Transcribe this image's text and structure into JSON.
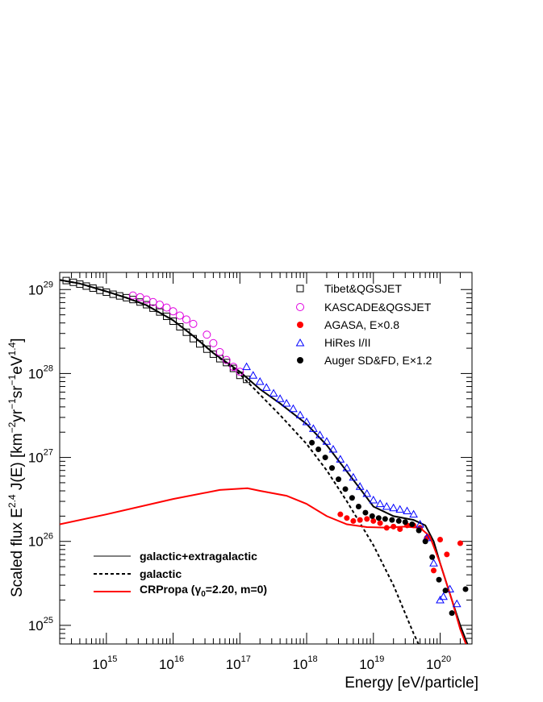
{
  "chart_data": {
    "type": "scatter",
    "xlabel": "Energy [eV/particle]",
    "ylabel": {
      "prefix": "Scaled flux   E",
      "exp1": "2.4",
      "mid": " J(E) [km",
      "exp2": "−2",
      "mid2": "yr",
      "exp3": "−1",
      "mid3": "sr",
      "exp4": "−1",
      "mid4": "eV",
      "exp5": "1.4",
      "suffix": "]"
    },
    "x_scale": "log",
    "y_scale": "log",
    "xlim": [
      200000000000000.0,
      3e+20
    ],
    "ylim": [
      6e+24,
      1.6e+29
    ],
    "x_ticks": [
      {
        "base": "10",
        "exp": "15"
      },
      {
        "base": "10",
        "exp": "16"
      },
      {
        "base": "10",
        "exp": "17"
      },
      {
        "base": "10",
        "exp": "18"
      },
      {
        "base": "10",
        "exp": "19"
      },
      {
        "base": "10",
        "exp": "20"
      }
    ],
    "y_ticks": [
      {
        "base": "10",
        "exp": "25"
      },
      {
        "base": "10",
        "exp": "26"
      },
      {
        "base": "10",
        "exp": "27"
      },
      {
        "base": "10",
        "exp": "28"
      },
      {
        "base": "10",
        "exp": "29"
      }
    ],
    "legend_top": {
      "placement": "top-right",
      "entries": [
        {
          "label": "Tibet&QGSJET",
          "marker": "open-square",
          "color": "#000000"
        },
        {
          "label": "KASCADE&QGSJET",
          "marker": "open-circle",
          "color": "#e000e0"
        },
        {
          "label": "AGASA, E×0.8",
          "marker": "filled-circle",
          "color": "#ff0000"
        },
        {
          "label": "HiRes I/II",
          "marker": "open-triangle",
          "color": "#0000ff"
        },
        {
          "label": "Auger SD&FD, E×1.2",
          "marker": "filled-circle",
          "color": "#000000"
        }
      ]
    },
    "legend_bottom": {
      "placement": "bottom-left",
      "entries": [
        {
          "label": "galactic+extragalactic",
          "style": "solid",
          "color": "#000000"
        },
        {
          "label": "galactic",
          "style": "dashed",
          "color": "#000000"
        },
        {
          "label_prefix": "CRPropa (γ",
          "label_sub": "0",
          "label_suffix": "=2.20, m=0)",
          "style": "solid",
          "color": "#ff0000"
        }
      ]
    },
    "series": [
      {
        "name": "Tibet&QGSJET",
        "marker": "open-square",
        "color": "#000000",
        "points": [
          [
            250000000000000.0,
            1.28e+29
          ],
          [
            320000000000000.0,
            1.22e+29
          ],
          [
            400000000000000.0,
            1.16e+29
          ],
          [
            500000000000000.0,
            1.1e+29
          ],
          [
            630000000000000.0,
            1.04e+29
          ],
          [
            800000000000000.0,
            9.8e+28
          ],
          [
            1000000000000000.0,
            9.3e+28
          ],
          [
            1260000000000000.0,
            8.8e+28
          ],
          [
            1580000000000000.0,
            8.4e+28
          ],
          [
            2000000000000000.0,
            8e+28
          ],
          [
            2500000000000000.0,
            7.6e+28
          ],
          [
            3200000000000000.0,
            7.1e+28
          ],
          [
            4000000000000000.0,
            6.6e+28
          ],
          [
            5000000000000000.0,
            6e+28
          ],
          [
            6300000000000000.0,
            5.4e+28
          ],
          [
            8000000000000000.0,
            4.8e+28
          ],
          [
            1e+16,
            4.2e+28
          ],
          [
            1.26e+16,
            3.6e+28
          ],
          [
            1.58e+16,
            3.1e+28
          ],
          [
            2e+16,
            2.6e+28
          ],
          [
            2.5e+16,
            2.25e+28
          ],
          [
            3.2e+16,
            1.95e+28
          ],
          [
            4e+16,
            1.7e+28
          ],
          [
            5e+16,
            1.5e+28
          ],
          [
            6.3e+16,
            1.35e+28
          ],
          [
            8e+16,
            1.15e+28
          ],
          [
            1e+17,
            9.5e+27
          ],
          [
            1.26e+17,
            8.5e+27
          ]
        ]
      },
      {
        "name": "KASCADE&QGSJET",
        "marker": "open-circle",
        "color": "#e000e0",
        "points": [
          [
            2500000000000000.0,
            8.5e+28
          ],
          [
            3200000000000000.0,
            8.1e+28
          ],
          [
            4000000000000000.0,
            7.6e+28
          ],
          [
            5000000000000000.0,
            7.1e+28
          ],
          [
            6300000000000000.0,
            6.6e+28
          ],
          [
            8000000000000000.0,
            6.1e+28
          ],
          [
            1e+16,
            5.5e+28
          ],
          [
            1.26e+16,
            4.9e+28
          ],
          [
            1.58e+16,
            4.4e+28
          ],
          [
            2e+16,
            3.9e+28
          ],
          [
            3.2e+16,
            2.9e+28
          ],
          [
            4e+16,
            2.3e+28
          ],
          [
            5e+16,
            1.8e+28
          ],
          [
            6.3e+16,
            1.45e+28
          ],
          [
            8e+16,
            1.2e+28
          ],
          [
            1e+17,
            1.05e+28
          ]
        ]
      },
      {
        "name": "AGASA, E×0.8",
        "marker": "filled-circle",
        "color": "#ff0000",
        "points": [
          [
            3.2e+18,
            2.1e+26
          ],
          [
            4e+18,
            1.9e+26
          ],
          [
            5e+18,
            1.75e+26
          ],
          [
            6.3e+18,
            1.8e+26
          ],
          [
            8e+18,
            1.85e+26
          ],
          [
            1e+19,
            1.75e+26
          ],
          [
            1.26e+19,
            1.65e+26
          ],
          [
            1.58e+19,
            1.45e+26
          ],
          [
            2e+19,
            1.5e+26
          ],
          [
            2.5e+19,
            1.4e+26
          ],
          [
            3.2e+19,
            1.55e+26
          ],
          [
            4e+19,
            1.55e+26
          ],
          [
            5e+19,
            1.45e+26
          ],
          [
            6.3e+19,
            1.1e+26
          ],
          [
            8e+19,
            4.5e+25
          ],
          [
            1e+20,
            1.05e+26
          ],
          [
            1.26e+20,
            7e+25
          ],
          [
            2e+20,
            9.5e+25
          ]
        ]
      },
      {
        "name": "HiRes I/II",
        "marker": "open-triangle",
        "color": "#0000ff",
        "points": [
          [
            1.26e+17,
            1.2e+28
          ],
          [
            1.58e+17,
            9.5e+27
          ],
          [
            2e+17,
            8e+27
          ],
          [
            2.5e+17,
            6.8e+27
          ],
          [
            3.2e+17,
            5.8e+27
          ],
          [
            4e+17,
            5e+27
          ],
          [
            5e+17,
            4.4e+27
          ],
          [
            6.3e+17,
            3.8e+27
          ],
          [
            8e+17,
            3.2e+27
          ],
          [
            1e+18,
            2.65e+27
          ],
          [
            1.26e+18,
            2.2e+27
          ],
          [
            1.58e+18,
            1.85e+27
          ],
          [
            2e+18,
            1.55e+27
          ],
          [
            2.5e+18,
            1.25e+27
          ],
          [
            3.2e+18,
            9.5e+26
          ],
          [
            4e+18,
            7.5e+26
          ],
          [
            5e+18,
            5.8e+26
          ],
          [
            6.3e+18,
            4.5e+26
          ],
          [
            8e+18,
            3.7e+26
          ],
          [
            1e+19,
            3.1e+26
          ],
          [
            1.26e+19,
            2.8e+26
          ],
          [
            1.58e+19,
            2.6e+26
          ],
          [
            2e+19,
            2.5e+26
          ],
          [
            2.5e+19,
            2.4e+26
          ],
          [
            3.2e+19,
            2.3e+26
          ],
          [
            4e+19,
            2.1e+26
          ],
          [
            5e+19,
            1.6e+26
          ],
          [
            6.3e+19,
            1.1e+26
          ],
          [
            8e+19,
            5.5e+25
          ],
          [
            1e+20,
            2e+25
          ],
          [
            1.12e+20,
            2.2e+25
          ],
          [
            1.4e+20,
            2.7e+25
          ],
          [
            1.78e+20,
            1.8e+25
          ]
        ]
      },
      {
        "name": "Auger SD&FD, E×1.2",
        "marker": "filled-circle",
        "color": "#000000",
        "points": [
          [
            1.2e+18,
            1.5e+27
          ],
          [
            1.5e+18,
            1.25e+27
          ],
          [
            1.9e+18,
            1e+27
          ],
          [
            2.4e+18,
            7.5e+26
          ],
          [
            3e+18,
            5.5e+26
          ],
          [
            3.8e+18,
            4.2e+26
          ],
          [
            4.8e+18,
            3.3e+26
          ],
          [
            6e+18,
            2.6e+26
          ],
          [
            7.6e+18,
            2.2e+26
          ],
          [
            9.6e+18,
            2e+26
          ],
          [
            1.2e+19,
            1.9e+26
          ],
          [
            1.5e+19,
            1.85e+26
          ],
          [
            1.9e+19,
            1.8e+26
          ],
          [
            2.4e+19,
            1.75e+26
          ],
          [
            3e+19,
            1.7e+26
          ],
          [
            3.8e+19,
            1.6e+26
          ],
          [
            4.8e+19,
            1.35e+26
          ],
          [
            6e+19,
            1e+26
          ],
          [
            7.6e+19,
            6.5e+25
          ],
          [
            9.6e+19,
            3.5e+25
          ],
          [
            1.2e+20,
            2.6e+25
          ],
          [
            1.5e+20,
            1.4e+25
          ],
          [
            2.4e+20,
            2.7e+25
          ]
        ]
      },
      {
        "name": "galactic+extragalactic",
        "style": "line",
        "color": "#000000",
        "points": [
          [
            200000000000000.0,
            1.3e+29
          ],
          [
            400000000000000.0,
            1.18e+29
          ],
          [
            1000000000000000.0,
            9.5e+28
          ],
          [
            2000000000000000.0,
            8e+28
          ],
          [
            4000000000000000.0,
            6.5e+28
          ],
          [
            1e+16,
            4.3e+28
          ],
          [
            2e+16,
            2.8e+28
          ],
          [
            4e+16,
            1.75e+28
          ],
          [
            1e+17,
            1.05e+28
          ],
          [
            2e+17,
            6.5e+27
          ],
          [
            4e+17,
            4.4e+27
          ],
          [
            1e+18,
            2.5e+27
          ],
          [
            2e+18,
            1.4e+27
          ],
          [
            4e+18,
            6.8e+26
          ],
          [
            7e+18,
            3.8e+26
          ],
          [
            1e+19,
            2.6e+26
          ],
          [
            2e+19,
            2e+26
          ],
          [
            4e+19,
            1.8e+26
          ],
          [
            6e+19,
            1.55e+26
          ],
          [
            8e+19,
            1e+26
          ],
          [
            1e+20,
            5.5e+25
          ],
          [
            1.5e+20,
            2e+25
          ],
          [
            2e+20,
            1e+25
          ],
          [
            2.8e+20,
            5e+24
          ]
        ]
      },
      {
        "name": "galactic",
        "style": "dashed",
        "color": "#000000",
        "points": [
          [
            200000000000000.0,
            1.3e+29
          ],
          [
            400000000000000.0,
            1.18e+29
          ],
          [
            1000000000000000.0,
            9.5e+28
          ],
          [
            2000000000000000.0,
            8e+28
          ],
          [
            4000000000000000.0,
            6.5e+28
          ],
          [
            1e+16,
            4.3e+28
          ],
          [
            2e+16,
            2.8e+28
          ],
          [
            4e+16,
            1.75e+28
          ],
          [
            1e+17,
            9.8e+27
          ],
          [
            2e+17,
            5.6e+27
          ],
          [
            4e+17,
            3.2e+27
          ],
          [
            1e+18,
            1.45e+27
          ],
          [
            2e+18,
            7e+26
          ],
          [
            4e+18,
            3e+26
          ],
          [
            1e+19,
            9e+25
          ],
          [
            2e+19,
            3e+25
          ],
          [
            4e+19,
            8e+24
          ],
          [
            5e+19,
            5.5e+24
          ]
        ]
      },
      {
        "name": "CRPropa (γ0=2.20, m=0)",
        "style": "line",
        "color": "#ff0000",
        "points": [
          [
            200000000000000.0,
            1.6e+26
          ],
          [
            1000000000000000.0,
            2.1e+26
          ],
          [
            1e+16,
            3.2e+26
          ],
          [
            5e+16,
            4.1e+26
          ],
          [
            1.3e+17,
            4.3e+26
          ],
          [
            2e+17,
            4e+26
          ],
          [
            5e+17,
            3.5e+26
          ],
          [
            1e+18,
            2.8e+26
          ],
          [
            2e+18,
            2e+26
          ],
          [
            4e+18,
            1.6e+26
          ],
          [
            8e+18,
            1.48e+26
          ],
          [
            1.5e+19,
            1.46e+26
          ],
          [
            3e+19,
            1.5e+26
          ],
          [
            5e+19,
            1.45e+26
          ],
          [
            7e+19,
            1.15e+26
          ],
          [
            1e+20,
            5.5e+25
          ],
          [
            1.5e+20,
            2e+25
          ],
          [
            2e+20,
            9e+24
          ],
          [
            2.8e+20,
            4.5e+24
          ]
        ]
      }
    ]
  }
}
